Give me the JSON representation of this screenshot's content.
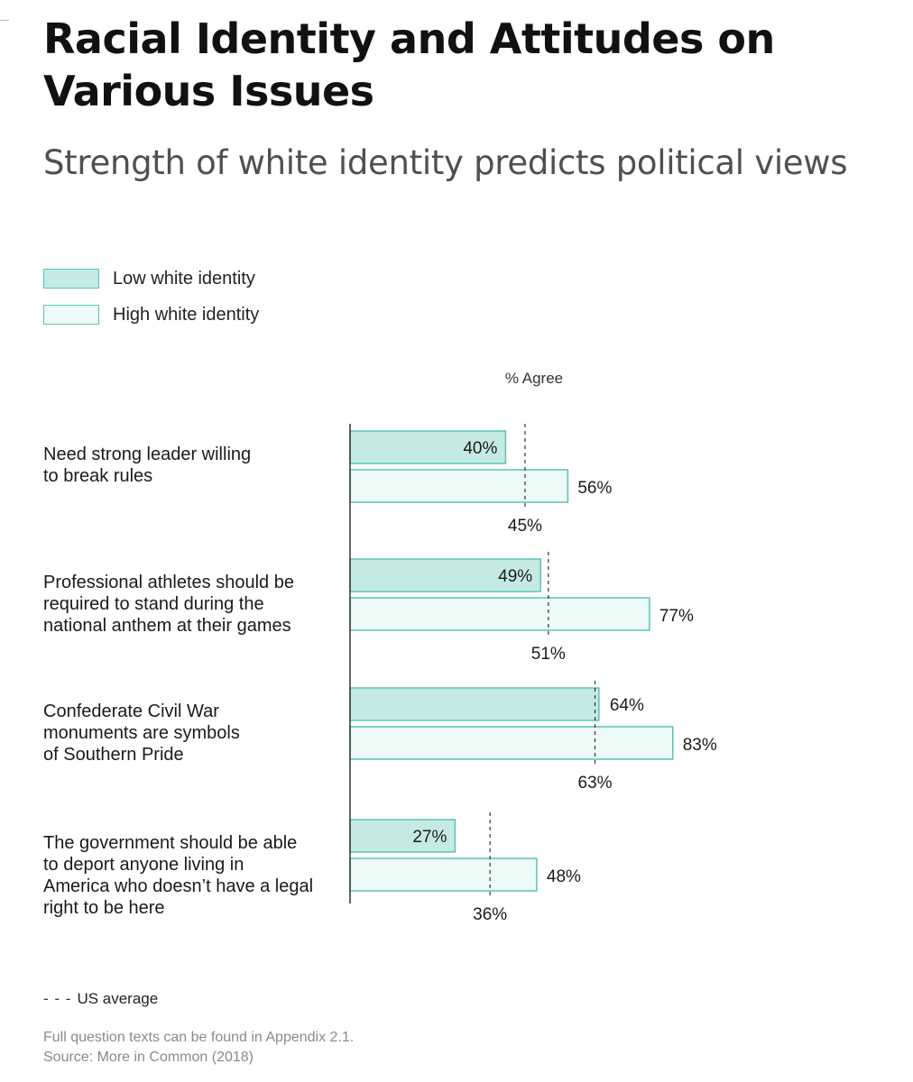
{
  "title": "Racial Identity and Attitudes on Various Issues",
  "subtitle": "Strength of white identity predicts political views",
  "colors": {
    "low_fill": "#c5eae4",
    "high_fill": "#eefaf8",
    "bar_stroke": "#58c4b6",
    "axis": "#333333",
    "avg_line": "#333333"
  },
  "legend": [
    {
      "label": "Low white identity",
      "color": "#c5eae4"
    },
    {
      "label": "High white identity",
      "color": "#eefaf8"
    }
  ],
  "avg_legend": {
    "symbol": "- - -",
    "label": "US average"
  },
  "footnotes": [
    "Full question texts can be found in Appendix 2.1.",
    "Source: More in Common (2018)"
  ],
  "chart_data": {
    "type": "bar",
    "orientation": "horizontal",
    "title": "Racial Identity and Attitudes on Various Issues",
    "subtitle": "Strength of white identity predicts political views",
    "xlabel": "% Agree",
    "xlim": [
      0,
      100
    ],
    "grid": false,
    "legend_position": "top-left",
    "categories": [
      [
        "Need strong leader willing",
        "to break rules"
      ],
      [
        "Professional athletes should be",
        "required to stand during the",
        "national anthem at their games"
      ],
      [
        "Confederate Civil War",
        "monuments are symbols",
        "of Southern Pride"
      ],
      [
        "The government should be able",
        "to deport anyone living in",
        "America who doesn’t have a legal",
        "right to be here"
      ]
    ],
    "series": [
      {
        "name": "Low white identity",
        "values": [
          40,
          49,
          64,
          27
        ],
        "labels": [
          "40%",
          "49%",
          "64%",
          "27%"
        ]
      },
      {
        "name": "High white identity",
        "values": [
          56,
          77,
          83,
          48
        ],
        "labels": [
          "56%",
          "77%",
          "83%",
          "48%"
        ]
      }
    ],
    "reference": {
      "name": "US average",
      "values": [
        45,
        51,
        63,
        36
      ],
      "labels": [
        "45%",
        "51%",
        "63%",
        "36%"
      ],
      "style": "dashed"
    }
  }
}
